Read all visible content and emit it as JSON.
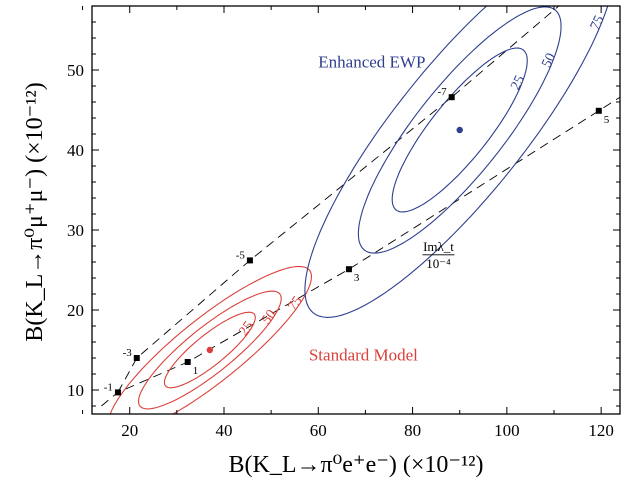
{
  "chart_data": {
    "type": "scatter",
    "x_axis": {
      "label": "B(K_L→π⁰e⁺e⁻)  (×10⁻¹²)",
      "range": [
        12,
        124
      ],
      "ticks": [
        20,
        40,
        60,
        80,
        100,
        120
      ]
    },
    "y_axis": {
      "label": "B(K_L→π⁰μ⁺μ⁻)  (×10⁻¹²)",
      "range": [
        7,
        58
      ],
      "ticks": [
        10,
        20,
        30,
        40,
        50
      ]
    },
    "grid": false,
    "annotation": {
      "numerator": "Imλ_t",
      "denominator": "10⁻⁴",
      "x": 85.5,
      "y": 27.4
    },
    "dashed_lines": [
      {
        "name": "upper",
        "points": [
          [
            17.5,
            9.7
          ],
          [
            21.5,
            14.0
          ],
          [
            45.5,
            26.2
          ],
          [
            88.3,
            46.6
          ],
          [
            111,
            58
          ]
        ],
        "markers": [
          {
            "x": 17.5,
            "y": 9.7,
            "label": "-1"
          },
          {
            "x": 21.5,
            "y": 14.0,
            "label": "-3"
          },
          {
            "x": 45.5,
            "y": 26.2,
            "label": "-5"
          },
          {
            "x": 88.3,
            "y": 46.6,
            "label": "-7"
          }
        ]
      },
      {
        "name": "lower",
        "points": [
          [
            14,
            8
          ],
          [
            17.5,
            9.7
          ],
          [
            32.3,
            13.5
          ],
          [
            66.5,
            25.1
          ],
          [
            119.5,
            44.9
          ],
          [
            124,
            46.6
          ]
        ],
        "markers": [
          {
            "x": 32.3,
            "y": 13.5,
            "label": "1"
          },
          {
            "x": 66.5,
            "y": 25.1,
            "label": "3"
          },
          {
            "x": 119.5,
            "y": 44.9,
            "label": "5"
          }
        ]
      }
    ],
    "regions": [
      {
        "name": "Standard Model",
        "color": "#d9413a",
        "center": [
          37,
          15
        ],
        "tilt_deg": 24,
        "contours": [
          {
            "level": "25",
            "a": 10.5,
            "b": 2.2
          },
          {
            "level": "50",
            "a": 16.5,
            "b": 3.3
          },
          {
            "level": "75",
            "a": 23.5,
            "b": 4.6
          }
        ],
        "label_pos": [
          58,
          13.7
        ]
      },
      {
        "name": "Enhanced EWP",
        "color": "#2f3f8f",
        "center": [
          90,
          42.5
        ],
        "tilt_deg": 34,
        "contours": [
          {
            "level": "25",
            "a": 17,
            "b": 4.6
          },
          {
            "level": "50",
            "a": 25.5,
            "b": 7
          },
          {
            "level": "75",
            "a": 39,
            "b": 10.3
          }
        ],
        "label_pos": [
          60,
          50.3
        ]
      }
    ]
  }
}
